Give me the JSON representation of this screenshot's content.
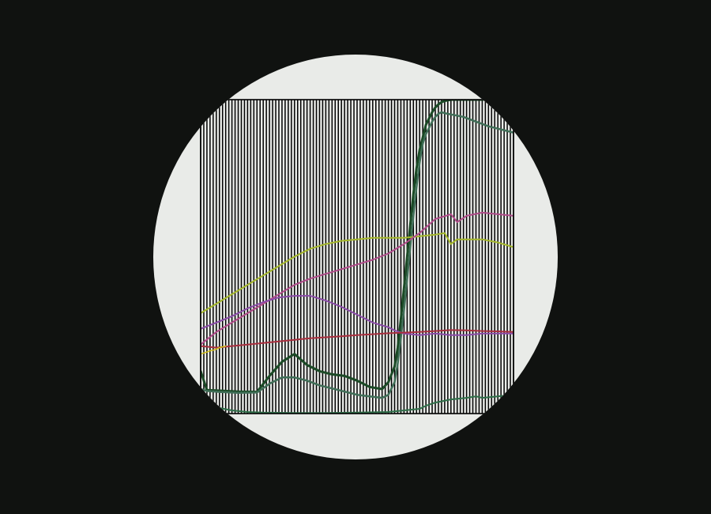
{
  "theme": {
    "background": "#101210",
    "disc": "#e9ebe8",
    "grid": "#000000",
    "frame": "#000000"
  },
  "chart_data": {
    "type": "line",
    "title": "",
    "xlabel": "",
    "ylabel": "",
    "xlim": [
      0,
      100
    ],
    "ylim": [
      0,
      100
    ],
    "grid": true,
    "legend": "none",
    "vertical_gridlines": 100,
    "series": [
      {
        "color": "#1b4a26",
        "width": 3,
        "x": [
          0,
          2,
          6,
          12,
          18,
          22,
          26,
          30,
          34,
          38,
          42,
          46,
          50,
          54,
          58,
          60,
          62,
          63,
          64,
          65,
          66,
          67,
          68,
          69,
          70,
          71,
          72,
          73,
          74,
          75,
          76,
          77,
          78,
          80,
          84,
          88,
          92,
          96,
          100
        ],
        "y": [
          13.5,
          7.5,
          7.3,
          7.0,
          6.9,
          12,
          16.5,
          19,
          15.5,
          13.5,
          12.5,
          12,
          10.5,
          8.5,
          7.8,
          10,
          15,
          21,
          30,
          40,
          50,
          60,
          70,
          78,
          84,
          88,
          92,
          94,
          96,
          97.5,
          98.5,
          99.2,
          99.6,
          100,
          100,
          100,
          100,
          100,
          100
        ]
      },
      {
        "color": "#3f6e57",
        "width": 2.5,
        "x": [
          0,
          2,
          6,
          12,
          18,
          22,
          26,
          30,
          34,
          38,
          42,
          46,
          50,
          54,
          58,
          60,
          62,
          63,
          64,
          65,
          66,
          67,
          68,
          69,
          70,
          71,
          72,
          73,
          74,
          75,
          76,
          77,
          78,
          80,
          84,
          88,
          92,
          96,
          100
        ],
        "y": [
          7.8,
          7.2,
          6.9,
          6.6,
          6.7,
          9.5,
          11.5,
          11.5,
          10.5,
          9,
          8,
          7,
          6,
          5.5,
          5,
          6,
          10,
          16,
          24,
          33,
          43,
          53,
          63,
          72,
          80,
          86,
          89,
          91,
          93,
          94.5,
          95.5,
          96,
          95.7,
          95.3,
          94.5,
          93,
          91.5,
          90.5,
          89.5
        ]
      },
      {
        "color": "#a5b82a",
        "width": 2,
        "x": [
          0,
          5,
          10,
          15,
          20,
          25,
          30,
          35,
          40,
          45,
          50,
          55,
          60,
          65,
          70,
          75,
          78,
          80,
          82,
          85,
          90,
          95,
          100
        ],
        "y": [
          32,
          35,
          38,
          41,
          44,
          47,
          50,
          52.5,
          54,
          55,
          55.5,
          56,
          56,
          56,
          56.5,
          57,
          57.5,
          54,
          55.5,
          55.5,
          55.5,
          54.5,
          53
        ]
      },
      {
        "color": "#b04a8a",
        "width": 2,
        "x": [
          0,
          5,
          10,
          15,
          20,
          25,
          30,
          35,
          40,
          45,
          50,
          55,
          60,
          65,
          70,
          75,
          80,
          82,
          85,
          90,
          95,
          100
        ],
        "y": [
          22,
          26,
          29,
          32,
          35,
          38,
          41,
          43,
          44.5,
          46,
          47.5,
          49,
          51,
          54,
          57.5,
          62,
          63.5,
          61,
          63,
          64,
          63.5,
          63
        ]
      },
      {
        "color": "#8a4aa8",
        "width": 2,
        "x": [
          0,
          5,
          10,
          15,
          20,
          25,
          30,
          35,
          40,
          45,
          50,
          55,
          60,
          62,
          65,
          70,
          75,
          80,
          85,
          90,
          95,
          100
        ],
        "y": [
          27,
          29,
          31,
          33.5,
          35.5,
          37,
          37.5,
          37.5,
          36,
          34,
          31.5,
          29,
          27.5,
          26.5,
          25.5,
          25,
          25.5,
          25,
          25,
          25.5,
          25.5,
          25.5
        ]
      },
      {
        "color": "#a82e3e",
        "width": 2,
        "x": [
          0,
          5,
          10,
          15,
          20,
          25,
          30,
          35,
          40,
          45,
          50,
          55,
          60,
          65,
          70,
          75,
          80,
          85,
          90,
          95,
          100
        ],
        "y": [
          21.5,
          21,
          21.5,
          22,
          22.5,
          23,
          23.5,
          24,
          24.3,
          24.6,
          25,
          25.3,
          25.6,
          25.8,
          26,
          26.3,
          26.6,
          26.5,
          26.3,
          26.2,
          26
        ]
      },
      {
        "color": "#d4c11a",
        "width": 1.5,
        "x": [
          0,
          1,
          2,
          3,
          4,
          5,
          6,
          8
        ],
        "y": [
          19,
          19.3,
          19.6,
          20,
          20.2,
          20.5,
          21,
          21.5
        ]
      },
      {
        "color": "#2e6e48",
        "width": 2,
        "x": [
          0,
          5,
          10,
          15,
          20,
          30,
          40,
          50,
          60,
          65,
          70,
          72,
          75,
          80,
          85,
          88,
          90,
          95,
          100
        ],
        "y": [
          4,
          2,
          1,
          0.5,
          0.3,
          0.2,
          0.2,
          0.3,
          0.5,
          1,
          1.5,
          2.5,
          3.5,
          4.5,
          5,
          5.5,
          5,
          5.5,
          6
        ]
      }
    ]
  }
}
